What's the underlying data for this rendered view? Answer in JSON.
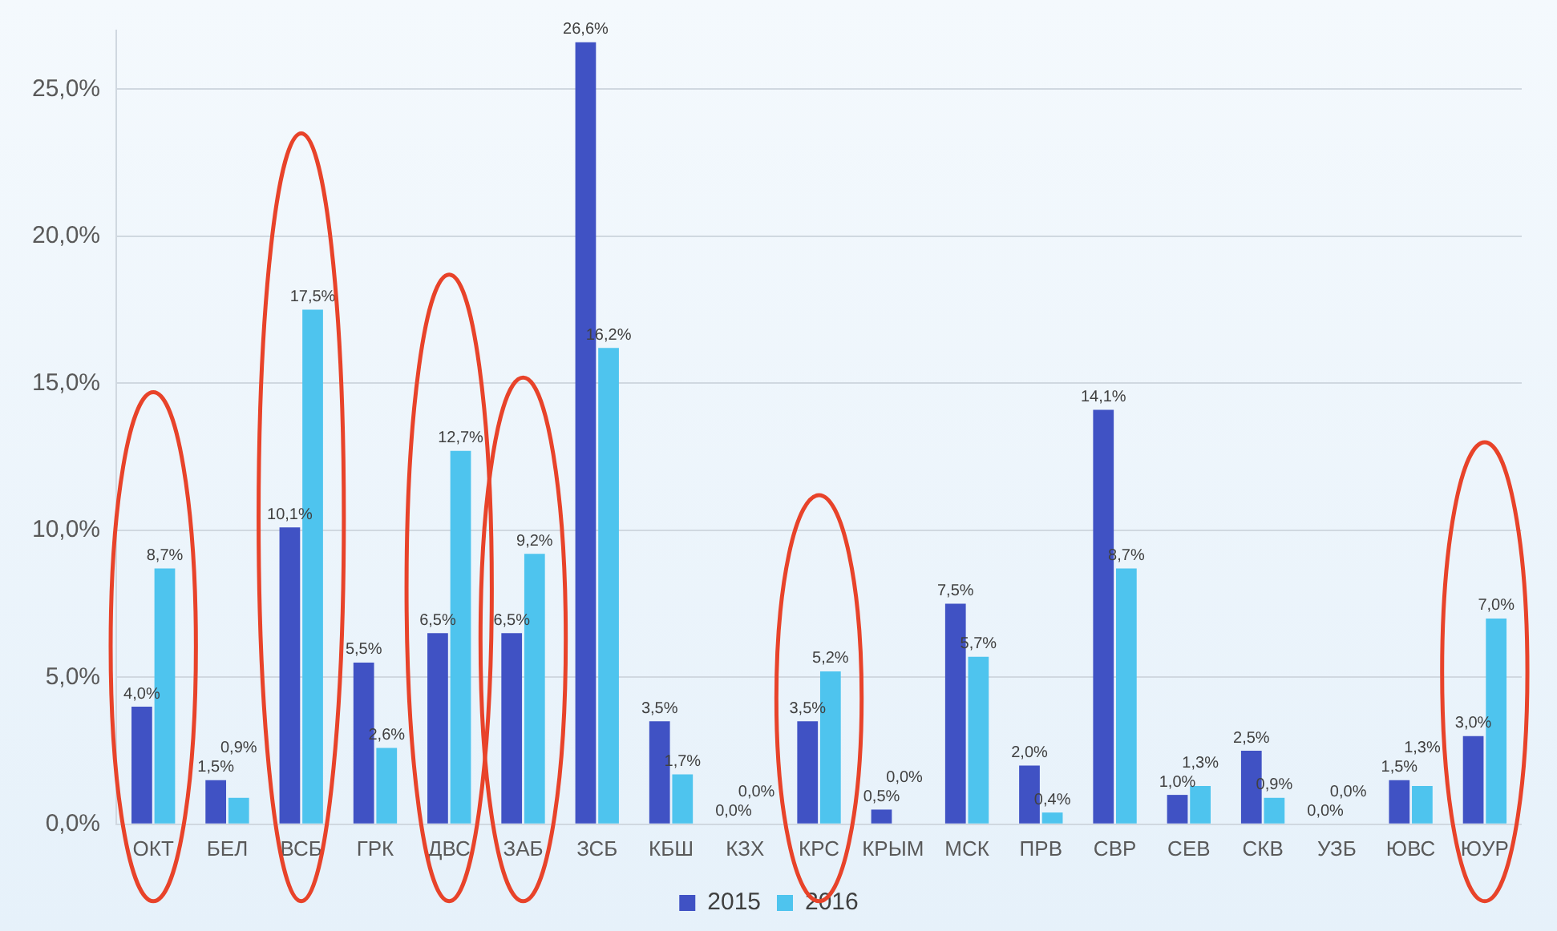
{
  "chart_data": {
    "type": "bar",
    "categories": [
      "ОКТ",
      "БЕЛ",
      "ВСБ",
      "ГРК",
      "ДВС",
      "ЗАБ",
      "ЗСБ",
      "КБШ",
      "КЗХ",
      "КРС",
      "КРЫМ",
      "МСК",
      "ПРВ",
      "СВР",
      "СЕВ",
      "СКВ",
      "УЗБ",
      "ЮВС",
      "ЮУР"
    ],
    "series": [
      {
        "name": "2015",
        "color": "#4052c4",
        "values": [
          4.0,
          1.5,
          10.1,
          5.5,
          6.5,
          6.5,
          26.6,
          3.5,
          0.0,
          3.5,
          0.5,
          7.5,
          2.0,
          14.1,
          1.0,
          2.5,
          0.0,
          1.5,
          3.0
        ],
        "value_labels": [
          "4,0%",
          "1,5%",
          "10,1%",
          "5,5%",
          "6,5%",
          "6,5%",
          "26,6%",
          "3,5%",
          "0,0%",
          "3,5%",
          "0,5%",
          "7,5%",
          "2,0%",
          "14,1%",
          "1,0%",
          "2,5%",
          "0,0%",
          "1,5%",
          "3,0%"
        ]
      },
      {
        "name": "2016",
        "color": "#4ec4ee",
        "values": [
          8.7,
          0.9,
          17.5,
          2.6,
          12.7,
          9.2,
          16.2,
          1.7,
          0.0,
          5.2,
          0.0,
          5.7,
          0.4,
          8.7,
          1.3,
          0.9,
          0.0,
          1.3,
          7.0
        ],
        "value_labels": [
          "8,7%",
          "0,9%",
          "17,5%",
          "2,6%",
          "12,7%",
          "9,2%",
          "16,2%",
          "1,7%",
          "0,0%",
          "5,2%",
          "0,0%",
          "5,7%",
          "0,4%",
          "8,7%",
          "1,3%",
          "0,9%",
          "0,0%",
          "1,3%",
          "7,0%"
        ]
      }
    ],
    "ylim": [
      0,
      27
    ],
    "yticks": [
      {
        "value": 0,
        "label": "0,0%"
      },
      {
        "value": 5,
        "label": "5,0%"
      },
      {
        "value": 10,
        "label": "10,0%"
      },
      {
        "value": 15,
        "label": "15,0%"
      },
      {
        "value": 20,
        "label": "20,0%"
      },
      {
        "value": 25,
        "label": "25,0%"
      }
    ],
    "grid": "y",
    "legend": "bottom"
  }
}
